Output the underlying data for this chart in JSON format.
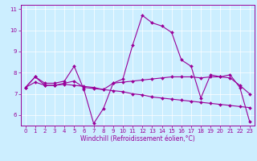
{
  "xlabel": "Windchill (Refroidissement éolien,°C)",
  "bg_color": "#cceeff",
  "line_color": "#990099",
  "grid_color": "#ffffff",
  "spine_color": "#990099",
  "xlim": [
    -0.5,
    23.5
  ],
  "ylim": [
    5.5,
    11.2
  ],
  "yticks": [
    6,
    7,
    8,
    9,
    10,
    11
  ],
  "xticks": [
    0,
    1,
    2,
    3,
    4,
    5,
    6,
    7,
    8,
    9,
    10,
    11,
    12,
    13,
    14,
    15,
    16,
    17,
    18,
    19,
    20,
    21,
    22,
    23
  ],
  "lines": [
    [
      7.3,
      7.8,
      7.5,
      7.5,
      7.6,
      8.3,
      7.2,
      5.6,
      6.3,
      7.5,
      7.7,
      9.3,
      10.7,
      10.35,
      10.2,
      9.9,
      8.6,
      8.3,
      6.8,
      7.9,
      7.8,
      7.9,
      7.3,
      5.7
    ],
    [
      7.3,
      7.8,
      7.4,
      7.4,
      7.5,
      7.6,
      7.3,
      7.25,
      7.2,
      7.5,
      7.55,
      7.6,
      7.65,
      7.7,
      7.75,
      7.8,
      7.8,
      7.8,
      7.75,
      7.8,
      7.8,
      7.75,
      7.4,
      7.0
    ],
    [
      7.3,
      7.55,
      7.4,
      7.4,
      7.45,
      7.4,
      7.35,
      7.3,
      7.2,
      7.15,
      7.1,
      7.0,
      6.95,
      6.85,
      6.8,
      6.75,
      6.7,
      6.65,
      6.6,
      6.55,
      6.5,
      6.45,
      6.4,
      6.35
    ]
  ],
  "tick_fontsize": 5.0,
  "xlabel_fontsize": 5.5,
  "marker_size": 2.0,
  "line_width": 0.8
}
